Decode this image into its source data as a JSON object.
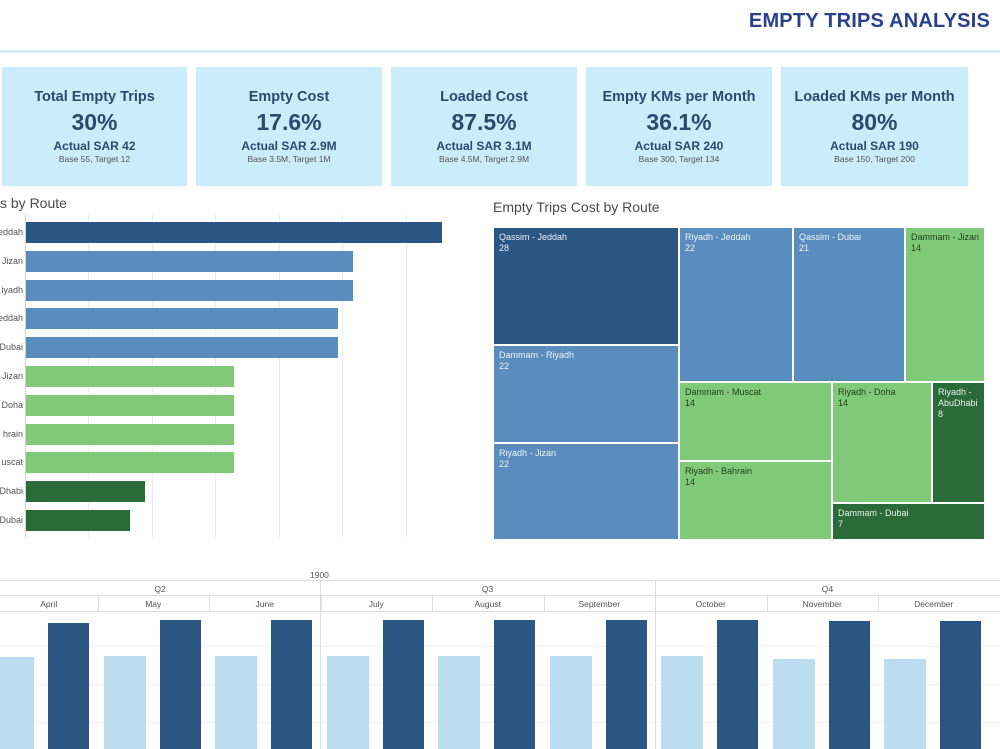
{
  "header": {
    "title": "EMPTY TRIPS ANALYSIS"
  },
  "kpis": [
    {
      "label": "Total Empty Trips",
      "value": "30%",
      "actual": "Actual SAR 42",
      "base": "Base 55, Target 12"
    },
    {
      "label": "Empty Cost",
      "value": "17.6%",
      "actual": "Actual SAR 2.9M",
      "base": "Base 3.5M, Target 1M"
    },
    {
      "label": "Loaded Cost",
      "value": "87.5%",
      "actual": "Actual SAR 3.1M",
      "base": "Base 4.5M, Target 2.9M"
    },
    {
      "label": "Empty KMs per Month",
      "value": "36.1%",
      "actual": "Actual SAR 240",
      "base": "Base 300, Target 134"
    },
    {
      "label": "Loaded KMs per Month",
      "value": "80%",
      "actual": "Actual SAR 190",
      "base": "Base 150, Target 200"
    }
  ],
  "route_chart": {
    "title": "s by Route",
    "bars": [
      {
        "label": "eddah",
        "value": 28,
        "color": "#2b5683"
      },
      {
        "label": "Jizan",
        "value": 22,
        "color": "#5a8dbd"
      },
      {
        "label": "iyadh",
        "value": 22,
        "color": "#5a8dbd"
      },
      {
        "label": "eddah",
        "value": 21,
        "color": "#5a8dbd"
      },
      {
        "label": "Dubai",
        "value": 21,
        "color": "#5a8dbd"
      },
      {
        "label": "Jizan",
        "value": 14,
        "color": "#80c978"
      },
      {
        "label": "Doha",
        "value": 14,
        "color": "#80c978"
      },
      {
        "label": "hrain",
        "value": 14,
        "color": "#80c978"
      },
      {
        "label": "uscat",
        "value": 14,
        "color": "#80c978"
      },
      {
        "label": "Dhabi",
        "value": 8,
        "color": "#2b6a39"
      },
      {
        "label": "Dubai",
        "value": 7,
        "color": "#2b6a39"
      }
    ]
  },
  "treemap": {
    "title": "Empty Trips Cost by Route",
    "cells": [
      {
        "name": "Qassim - Jeddah",
        "value": "28"
      },
      {
        "name": "Riyadh - Jeddah",
        "value": "22"
      },
      {
        "name": "Qassim - Dubai",
        "value": "21"
      },
      {
        "name": "Dammam - Jizan",
        "value": "14"
      },
      {
        "name": "Dammam - Riyadh",
        "value": "22"
      },
      {
        "name": "Dammam - Muscat",
        "value": "14"
      },
      {
        "name": "Riyadh - Doha",
        "value": "14"
      },
      {
        "name": "Riyadh - AbuDhabi",
        "value": "8"
      },
      {
        "name": "Riyadh - Jizan",
        "value": "22"
      },
      {
        "name": "Riyadh - Bahrain",
        "value": "14"
      },
      {
        "name": "Dammam - Dubai",
        "value": "7"
      }
    ]
  },
  "monthly": {
    "year": "1900",
    "quarters": [
      "Q2",
      "Q3",
      "Q4"
    ],
    "months": [
      "April",
      "May",
      "June",
      "July",
      "August",
      "September",
      "October",
      "November",
      "December"
    ]
  },
  "chart_data": [
    {
      "type": "bar",
      "title": "s by Route",
      "orientation": "horizontal",
      "categories": [
        "eddah",
        "Jizan",
        "iyadh",
        "eddah",
        "Dubai",
        "Jizan",
        "Doha",
        "hrain",
        "uscat",
        "Dhabi",
        "Dubai"
      ],
      "values": [
        28,
        22,
        22,
        21,
        21,
        14,
        14,
        14,
        14,
        8,
        7
      ]
    },
    {
      "type": "treemap",
      "title": "Empty Trips Cost by Route",
      "categories": [
        "Qassim - Jeddah",
        "Riyadh - Jeddah",
        "Dammam - Riyadh",
        "Riyadh - Jizan",
        "Qassim - Dubai",
        "Dammam - Jizan",
        "Dammam - Muscat",
        "Riyadh - Doha",
        "Riyadh - Bahrain",
        "Riyadh - AbuDhabi",
        "Dammam - Dubai"
      ],
      "values": [
        28,
        22,
        22,
        22,
        21,
        14,
        14,
        14,
        14,
        8,
        7
      ]
    },
    {
      "type": "bar",
      "x": [
        "April",
        "May",
        "June",
        "July",
        "August",
        "September",
        "October",
        "November",
        "December"
      ],
      "series": [
        {
          "values": [
            0.71,
            0.72,
            0.72,
            0.72,
            0.72,
            0.72,
            0.72,
            0.7,
            0.7
          ]
        },
        {
          "values": [
            0.98,
            1.0,
            1.0,
            1.0,
            1.0,
            1.0,
            1.0,
            0.99,
            0.99
          ]
        }
      ]
    }
  ]
}
